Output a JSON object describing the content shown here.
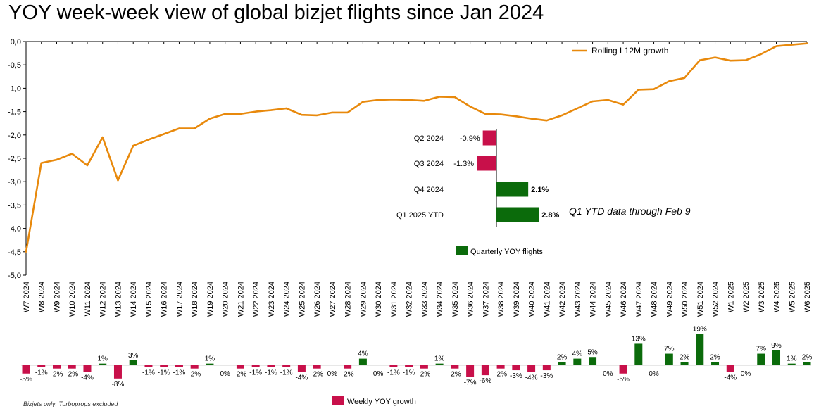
{
  "title": "YOY week-week view of global bizjet flights since Jan 2024",
  "footnote": "Bizjets only: Turboprops excluded",
  "chart_data": [
    {
      "type": "line",
      "series": [
        {
          "name": "Rolling L12M growth",
          "color": "#E8890C"
        }
      ],
      "categories": [
        "W7 2024",
        "W8 2024",
        "W9 2024",
        "W10 2024",
        "W11 2024",
        "W12 2024",
        "W13 2024",
        "W14 2024",
        "W15 2024",
        "W16 2024",
        "W17 2024",
        "W18 2024",
        "W19 2024",
        "W20 2024",
        "W21 2024",
        "W22 2024",
        "W23 2024",
        "W24 2024",
        "W25 2024",
        "W26 2024",
        "W27 2024",
        "W28 2024",
        "W29 2024",
        "W30 2024",
        "W31 2024",
        "W32 2024",
        "W33 2024",
        "W34 2024",
        "W35 2024",
        "W36 2024",
        "W37 2024",
        "W38 2024",
        "W39 2024",
        "W40 2024",
        "W41 2024",
        "W42 2024",
        "W43 2024",
        "W44 2024",
        "W45 2024",
        "W46 2024",
        "W47 2024",
        "W48 2024",
        "W49 2024",
        "W50 2024",
        "W51 2024",
        "W52 2024",
        "W1 2025",
        "W2 2025",
        "W3 2025",
        "W4 2025",
        "W5 2025",
        "W6 2025"
      ],
      "values": [
        -4.5,
        -2.6,
        -2.53,
        -2.4,
        -2.65,
        -2.05,
        -2.97,
        -2.23,
        -2.1,
        -1.98,
        -1.86,
        -1.86,
        -1.65,
        -1.55,
        -1.55,
        -1.5,
        -1.47,
        -1.43,
        -1.57,
        -1.58,
        -1.52,
        -1.52,
        -1.29,
        -1.25,
        -1.24,
        -1.25,
        -1.27,
        -1.18,
        -1.19,
        -1.39,
        -1.55,
        -1.56,
        -1.6,
        -1.65,
        -1.69,
        -1.58,
        -1.43,
        -1.28,
        -1.25,
        -1.35,
        -1.03,
        -1.02,
        -0.85,
        -0.78,
        -0.4,
        -0.34,
        -0.41,
        -0.4,
        -0.27,
        -0.1,
        -0.07,
        -0.04
      ],
      "ylim": [
        -5.0,
        0.0
      ],
      "yticks": [
        "0,0",
        "-0,5",
        "-1,0",
        "-1,5",
        "-2,0",
        "-2,5",
        "-3,0",
        "-3,5",
        "-4,0",
        "-4,5",
        "-5,0"
      ],
      "legend": "top-right"
    },
    {
      "type": "bar",
      "orientation": "horizontal",
      "series": [
        {
          "name": "Quarterly YOY flights",
          "color": "#0B6B0B"
        }
      ],
      "negative_color": "#C8104A",
      "categories": [
        "Q2 2024",
        "Q3 2024",
        "Q4 2024",
        "Q1 2025 YTD"
      ],
      "values": [
        -0.9,
        -1.3,
        2.1,
        2.8
      ],
      "labels": [
        "-0.9%",
        "-1.3%",
        "2.1%",
        "2.8%"
      ],
      "annotation": "Q1 YTD data through Feb 9",
      "legend": "bottom"
    },
    {
      "type": "bar",
      "series": [
        {
          "name": "Weekly YOY growth",
          "color": "#0B6B0B"
        }
      ],
      "negative_color": "#C8104A",
      "values": [
        -5,
        -1,
        -2,
        -2,
        -4,
        1,
        -8,
        3,
        -1,
        -1,
        -1,
        -2,
        1,
        0,
        -2,
        -1,
        -1,
        -1,
        -4,
        -2,
        0,
        -2,
        4,
        0,
        -1,
        -1,
        -2,
        1,
        -2,
        -7,
        -6,
        -2,
        -3,
        -4,
        -3,
        2,
        4,
        5,
        0,
        -5,
        13,
        0,
        7,
        2,
        19,
        2,
        -4,
        0,
        7,
        9,
        1,
        2
      ],
      "labels": [
        "-5%",
        "-1%",
        "-2%",
        "-2%",
        "-4%",
        "1%",
        "-8%",
        "3%",
        "-1%",
        "-1%",
        "-1%",
        "-2%",
        "1%",
        "0%",
        "-2%",
        "-1%",
        "-1%",
        "-1%",
        "-4%",
        "-2%",
        "0%",
        "-2%",
        "4%",
        "0%",
        "-1%",
        "-1%",
        "-2%",
        "1%",
        "-2%",
        "-7%",
        "-6%",
        "-2%",
        "-3%",
        "-4%",
        "-3%",
        "2%",
        "4%",
        "5%",
        "0%",
        "-5%",
        "13%",
        "0%",
        "7%",
        "2%",
        "19%",
        "2%",
        "-4%",
        "0%",
        "7%",
        "9%",
        "1%",
        "2%"
      ],
      "legend": "bottom"
    }
  ]
}
